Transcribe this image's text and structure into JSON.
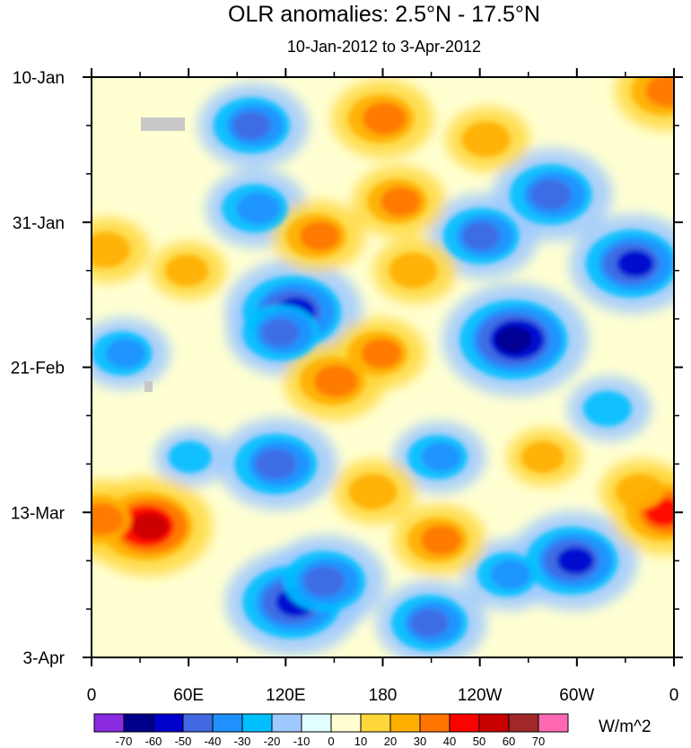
{
  "chart_data": {
    "type": "heatmap",
    "title": "OLR anomalies: 2.5°N - 17.5°N",
    "subtitle": "10-Jan-2012 to 3-Apr-2012",
    "x_ticks": [
      "0",
      "60E",
      "120E",
      "180",
      "120W",
      "60W",
      "0"
    ],
    "x_tick_lon": [
      0,
      60,
      120,
      180,
      240,
      300,
      360
    ],
    "x_range": [
      0,
      360
    ],
    "y_ticks": [
      "10-Jan",
      "31-Jan",
      "21-Feb",
      "13-Mar",
      "3-Apr"
    ],
    "y_tick_day": [
      0,
      21,
      42,
      63,
      84
    ],
    "y_range": [
      0,
      84
    ],
    "colorbar": {
      "units": "W/m^2",
      "labels": [
        "-70",
        "-60",
        "-50",
        "-40",
        "-30",
        "-20",
        "-10",
        "0",
        "10",
        "20",
        "30",
        "40",
        "50",
        "60",
        "70"
      ],
      "colors": [
        "#8a2be2",
        "#00008b",
        "#0000cd",
        "#4169e1",
        "#1e90ff",
        "#00bfff",
        "#9ec9ff",
        "#e0ffff",
        "#ffffd2",
        "#ffd73a",
        "#ffae00",
        "#ff7500",
        "#ff0000",
        "#c80000",
        "#a02828",
        "#ff69b4"
      ]
    },
    "features": [
      {
        "lon": 100,
        "day": 7,
        "value": -40
      },
      {
        "lon": 102,
        "day": 19,
        "value": -35
      },
      {
        "lon": 125,
        "day": 34,
        "value": -55
      },
      {
        "lon": 118,
        "day": 37,
        "value": -40
      },
      {
        "lon": 262,
        "day": 38,
        "value": -60
      },
      {
        "lon": 285,
        "day": 17,
        "value": -45
      },
      {
        "lon": 335,
        "day": 27,
        "value": -50
      },
      {
        "lon": 242,
        "day": 23,
        "value": -40
      },
      {
        "lon": 115,
        "day": 56,
        "value": -45
      },
      {
        "lon": 125,
        "day": 76,
        "value": -55
      },
      {
        "lon": 145,
        "day": 73,
        "value": -45
      },
      {
        "lon": 215,
        "day": 55,
        "value": -30
      },
      {
        "lon": 298,
        "day": 70,
        "value": -50
      },
      {
        "lon": 210,
        "day": 79,
        "value": -40
      },
      {
        "lon": 258,
        "day": 72,
        "value": -30
      },
      {
        "lon": 20,
        "day": 40,
        "value": -30
      },
      {
        "lon": 320,
        "day": 48,
        "value": -25
      },
      {
        "lon": 62,
        "day": 55,
        "value": -20
      },
      {
        "lon": 180,
        "day": 6,
        "value": 35
      },
      {
        "lon": 190,
        "day": 18,
        "value": 30
      },
      {
        "lon": 178,
        "day": 40,
        "value": 30
      },
      {
        "lon": 200,
        "day": 28,
        "value": 25
      },
      {
        "lon": 245,
        "day": 9,
        "value": 25
      },
      {
        "lon": 35,
        "day": 65,
        "value": 50
      },
      {
        "lon": 5,
        "day": 64,
        "value": 35
      },
      {
        "lon": 140,
        "day": 23,
        "value": 30
      },
      {
        "lon": 150,
        "day": 44,
        "value": 35
      },
      {
        "lon": 215,
        "day": 67,
        "value": 30
      },
      {
        "lon": 175,
        "day": 60,
        "value": 25
      },
      {
        "lon": 355,
        "day": 63,
        "value": 40
      },
      {
        "lon": 355,
        "day": 2,
        "value": 35
      },
      {
        "lon": 10,
        "day": 25,
        "value": 25
      },
      {
        "lon": 340,
        "day": 60,
        "value": 25
      },
      {
        "lon": 280,
        "day": 55,
        "value": 20
      },
      {
        "lon": 60,
        "day": 28,
        "value": 20
      }
    ]
  }
}
